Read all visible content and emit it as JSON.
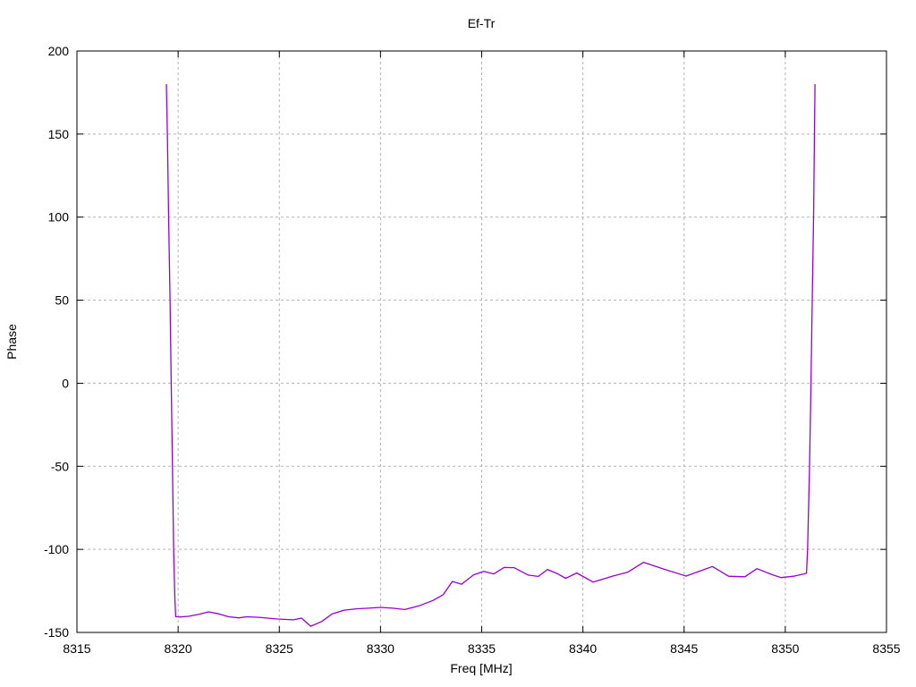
{
  "window": {
    "background": "#ffffff"
  },
  "chart_data": {
    "type": "line",
    "title": "Ef-Tr",
    "xlabel": "Freq [MHz]",
    "ylabel": "Phase",
    "xlim": [
      8315,
      8355
    ],
    "ylim": [
      -150,
      200
    ],
    "xticks": [
      8315,
      8320,
      8325,
      8330,
      8335,
      8340,
      8345,
      8350,
      8355
    ],
    "yticks": [
      -150,
      -100,
      -50,
      0,
      50,
      100,
      150,
      200
    ],
    "grid": true,
    "grid_style": "dashed",
    "legend_position": "none",
    "colors": {
      "line": "#9400d3",
      "grid": "#b3b3b3",
      "border": "#000000",
      "text": "#000000"
    },
    "series": [
      {
        "name": "Ef-Tr",
        "color": "#9400d3",
        "points": [
          [
            8319.42,
            180
          ],
          [
            8319.47,
            150
          ],
          [
            8319.53,
            100
          ],
          [
            8319.6,
            50
          ],
          [
            8319.66,
            0
          ],
          [
            8319.72,
            -50
          ],
          [
            8319.78,
            -100
          ],
          [
            8319.84,
            -130
          ],
          [
            8319.88,
            -140.5
          ],
          [
            8320.1,
            -140.7
          ],
          [
            8320.5,
            -140.3
          ],
          [
            8321.0,
            -139.2
          ],
          [
            8321.5,
            -137.6
          ],
          [
            8322.0,
            -138.8
          ],
          [
            8322.5,
            -140.6
          ],
          [
            8323.0,
            -141.2
          ],
          [
            8323.4,
            -140.6
          ],
          [
            8324.0,
            -140.9
          ],
          [
            8324.9,
            -141.9
          ],
          [
            8325.7,
            -142.4
          ],
          [
            8326.1,
            -141.4
          ],
          [
            8326.55,
            -146.3
          ],
          [
            8327.1,
            -143.4
          ],
          [
            8327.6,
            -138.9
          ],
          [
            8328.2,
            -136.6
          ],
          [
            8328.8,
            -135.8
          ],
          [
            8329.4,
            -135.4
          ],
          [
            8330.0,
            -134.9
          ],
          [
            8330.6,
            -135.4
          ],
          [
            8331.2,
            -136.2
          ],
          [
            8331.9,
            -134.0
          ],
          [
            8332.6,
            -130.7
          ],
          [
            8333.1,
            -127.3
          ],
          [
            8333.55,
            -119.3
          ],
          [
            8334.0,
            -121.0
          ],
          [
            8334.6,
            -115.3
          ],
          [
            8335.1,
            -113.2
          ],
          [
            8335.6,
            -114.8
          ],
          [
            8336.1,
            -110.9
          ],
          [
            8336.6,
            -111.0
          ],
          [
            8337.3,
            -115.5
          ],
          [
            8337.8,
            -116.3
          ],
          [
            8338.25,
            -112.1
          ],
          [
            8338.75,
            -114.7
          ],
          [
            8339.15,
            -117.4
          ],
          [
            8339.7,
            -114.2
          ],
          [
            8340.5,
            -119.7
          ],
          [
            8341.5,
            -116.0
          ],
          [
            8342.2,
            -113.8
          ],
          [
            8343.0,
            -107.8
          ],
          [
            8343.9,
            -111.5
          ],
          [
            8345.1,
            -116.1
          ],
          [
            8346.4,
            -110.3
          ],
          [
            8347.2,
            -116.2
          ],
          [
            8348.0,
            -116.5
          ],
          [
            8348.6,
            -111.6
          ],
          [
            8349.3,
            -115.0
          ],
          [
            8349.8,
            -117.0
          ],
          [
            8350.4,
            -116.2
          ],
          [
            8350.9,
            -114.9
          ],
          [
            8351.05,
            -114.3
          ],
          [
            8351.1,
            -100
          ],
          [
            8351.2,
            -50
          ],
          [
            8351.27,
            0
          ],
          [
            8351.33,
            50
          ],
          [
            8351.4,
            100
          ],
          [
            8351.44,
            150
          ],
          [
            8351.47,
            180
          ]
        ]
      }
    ]
  }
}
